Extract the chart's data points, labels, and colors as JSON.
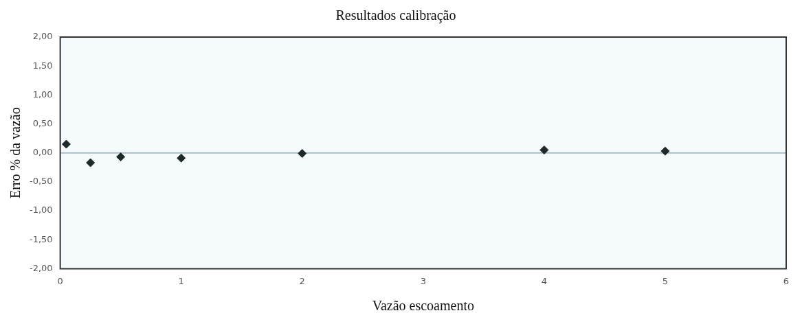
{
  "chart_data": {
    "type": "scatter",
    "title": "Resultados calibração",
    "xlabel": "Vazão escoamento",
    "ylabel": "Erro % da vazão",
    "x": [
      0.05,
      0.25,
      0.5,
      1,
      2,
      4,
      5
    ],
    "series": [
      {
        "color": "#1e2a2a",
        "values": [
          0.15,
          -0.17,
          -0.07,
          -0.09,
          -0.01,
          0.05,
          0.03
        ]
      }
    ],
    "marker": "diamond",
    "grid": false,
    "legend": false,
    "xlim": [
      0,
      6
    ],
    "xticks": [
      0,
      1,
      2,
      3,
      4,
      5,
      6
    ],
    "ylim": [
      -2,
      2
    ],
    "yticks": [
      {
        "value": -2,
        "label": "-2,00"
      },
      {
        "value": -1.5,
        "label": "-1,50"
      },
      {
        "value": -1,
        "label": "-1,00"
      },
      {
        "value": -0.5,
        "label": "-0,50"
      },
      {
        "value": 0,
        "label": "0,00"
      },
      {
        "value": 0.5,
        "label": "0,50"
      },
      {
        "value": 1,
        "label": "1,00"
      },
      {
        "value": 1.5,
        "label": "1,50"
      },
      {
        "value": 2,
        "label": "2,00"
      }
    ],
    "ref_lines": [
      {
        "axis": "y",
        "value": 0,
        "color": "#a9bcc8"
      }
    ]
  }
}
